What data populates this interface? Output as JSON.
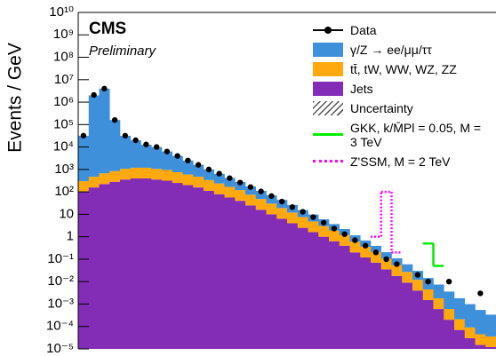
{
  "chart_data": {
    "type": "bar",
    "stacked": true,
    "ylog": true,
    "title": "CMS",
    "subtitle": "Preliminary",
    "y_label": "Events / GeV",
    "categories": [
      null,
      null,
      null,
      null,
      null,
      null,
      null,
      null,
      null,
      null,
      null,
      null,
      null,
      null,
      null,
      null,
      null,
      null,
      null,
      null,
      null,
      null,
      null,
      null,
      null,
      null,
      null,
      null,
      null,
      null,
      null,
      null,
      null,
      null,
      null,
      null,
      null,
      null,
      null,
      null
    ],
    "ylim": [
      1e-05,
      10000000000.0
    ],
    "yticks": [
      {
        "value": 1e-05,
        "label": "10⁻⁵"
      },
      {
        "value": 0.0001,
        "label": "10⁻⁴"
      },
      {
        "value": 0.001,
        "label": "10⁻³"
      },
      {
        "value": 0.01,
        "label": "10⁻²"
      },
      {
        "value": 0.1,
        "label": "10⁻¹"
      },
      1,
      10,
      {
        "value": 100,
        "label": "10²"
      },
      {
        "value": 1000,
        "label": "10³"
      },
      {
        "value": 10000,
        "label": "10⁴"
      },
      {
        "value": 100000,
        "label": "10⁵"
      },
      {
        "value": 1000000,
        "label": "10⁶"
      },
      {
        "value": 10000000,
        "label": "10⁷"
      },
      {
        "value": 100000000,
        "label": "10⁸"
      },
      {
        "value": 1000000000,
        "label": "10⁹"
      },
      {
        "value": 10000000000,
        "label": "10¹⁰"
      }
    ],
    "series": [
      {
        "name": "Data",
        "kind": "points",
        "color": "#000000",
        "values": [
          32000,
          2100000,
          4000000,
          160000,
          32000,
          20000,
          13000,
          10000,
          6300,
          4000,
          2500,
          1600,
          1000,
          650,
          410,
          260,
          165,
          105,
          65,
          37,
          21,
          13,
          7.5,
          4.2,
          2.3,
          1.3,
          0.7,
          0.4,
          0.2,
          0.1,
          0.06,
          null,
          0.02,
          0.01,
          null,
          0.01,
          null,
          null,
          0.003,
          null
        ]
      },
      {
        "name": "γ/Z → ee/μμ/ττ",
        "kind": "stack",
        "color": "#3f90da",
        "values": [
          31300,
          2000000,
          4000000,
          159000,
          30500,
          18800,
          11400,
          8900,
          5350,
          3250,
          1900,
          1130,
          664,
          400,
          250,
          160,
          100,
          63,
          40,
          25,
          14,
          8,
          5,
          3,
          1.8,
          1,
          0.56,
          0.32,
          0.18,
          0.1,
          0.056,
          0.032,
          0.018,
          0.01,
          0.0056,
          0.003,
          0.0016,
          0.0009,
          0.0005,
          0.0003
        ]
      },
      {
        "name": "tt̄, tW, WW, WZ, ZZ",
        "kind": "stack",
        "color": "#ffa90e",
        "values": [
          200,
          316,
          448,
          564,
          710,
          796,
          796,
          710,
          632,
          502,
          400,
          316,
          224,
          158,
          112,
          80,
          50,
          32,
          20,
          12.6,
          8,
          5,
          3.2,
          2,
          1.26,
          0.8,
          0.4,
          0.24,
          0.14,
          0.07,
          0.036,
          0.018,
          0.008,
          0.003,
          0.0012,
          0.0004,
          0.00014,
          6e-05,
          3e-05,
          2.4e-05
        ]
      },
      {
        "name": "Jets",
        "kind": "stack",
        "color": "#832db6",
        "values": [
          100,
          158,
          224,
          282,
          355,
          398,
          398,
          355,
          316,
          251,
          200,
          158,
          112,
          79,
          56,
          40,
          25,
          16,
          10,
          6.3,
          4,
          2.5,
          1.6,
          1,
          0.63,
          0.4,
          0.2,
          0.12,
          0.07,
          0.035,
          0.018,
          0.009,
          0.004,
          0.0015,
          0.0006,
          0.0002,
          7e-05,
          3e-05,
          1.5e-05,
          1.2e-05
        ]
      },
      {
        "name": "GKK, k/M̄Pl = 0.05, M = 3 TeV",
        "kind": "step",
        "color": "#00ee00",
        "values": [
          null,
          null,
          null,
          null,
          null,
          null,
          null,
          null,
          null,
          null,
          null,
          null,
          null,
          null,
          null,
          null,
          null,
          null,
          null,
          null,
          null,
          null,
          null,
          null,
          null,
          null,
          null,
          null,
          null,
          null,
          null,
          null,
          null,
          0.5,
          0.05,
          null,
          null,
          null,
          null,
          null
        ]
      },
      {
        "name": "Z'SSM, M = 2 TeV",
        "kind": "step",
        "dashed": true,
        "color": "#ff00ff",
        "values": [
          null,
          null,
          null,
          null,
          null,
          null,
          null,
          null,
          null,
          null,
          null,
          null,
          null,
          null,
          null,
          null,
          null,
          null,
          null,
          null,
          null,
          null,
          null,
          null,
          null,
          null,
          null,
          null,
          1,
          100,
          0.2,
          null,
          null,
          null,
          null,
          null,
          null,
          null,
          null,
          null
        ]
      }
    ],
    "uncertainty_label": "Uncertainty"
  }
}
